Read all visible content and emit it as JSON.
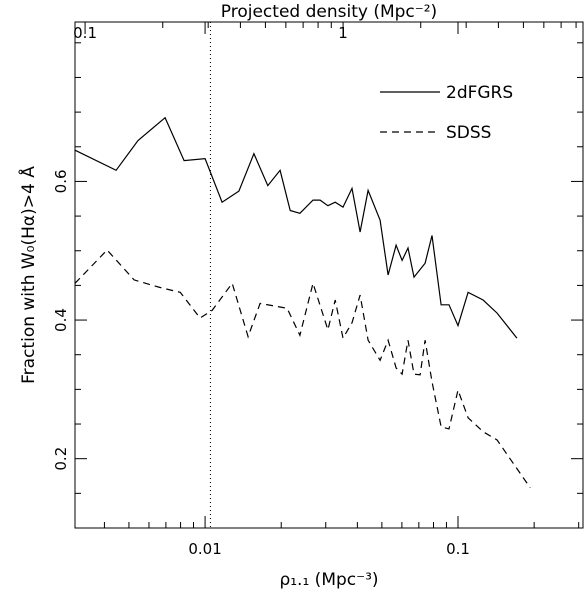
{
  "chart_data": {
    "type": "line",
    "x_label": "ρ₁.₁ (Mpc⁻³)",
    "y_label": "Fraction with W₀(Hα)>4 Å",
    "top_axis_label": "Projected density (Mpc⁻²)",
    "xscale": "log",
    "xlim": [
      0.00306,
      0.312
    ],
    "xticks": [
      0.01,
      0.1
    ],
    "xminorticks": [
      0.004,
      0.005,
      0.006,
      0.007,
      0.008,
      0.009,
      0.02,
      0.03,
      0.04,
      0.05,
      0.06,
      0.07,
      0.08,
      0.09,
      0.2,
      0.3
    ],
    "top_xlim": [
      0.0914,
      8.51
    ],
    "top_xticks": [
      0.1,
      1
    ],
    "top_xminorticks": [
      0.2,
      0.3,
      0.4,
      0.5,
      0.6,
      0.7,
      0.8,
      0.9,
      2,
      3,
      4,
      5,
      6,
      7,
      8
    ],
    "ylim": [
      0.1,
      0.83
    ],
    "yticks": [
      0.2,
      0.4,
      0.6
    ],
    "yminorticks": [
      0.15,
      0.25,
      0.3,
      0.35,
      0.45,
      0.5,
      0.55,
      0.65,
      0.7,
      0.75,
      0.8
    ],
    "vline": 0.0105,
    "legend": "upper right",
    "series": [
      {
        "name": "2dFGRS",
        "color": "#000000",
        "dash": "solid",
        "x": [
          0.00306,
          0.00445,
          0.00543,
          0.00695,
          0.00826,
          0.01,
          0.01168,
          0.0136,
          0.0156,
          0.0177,
          0.0198,
          0.0217,
          0.0237,
          0.0267,
          0.0285,
          0.0306,
          0.0327,
          0.0351,
          0.0381,
          0.041,
          0.0441,
          0.0492,
          0.0529,
          0.0569,
          0.0601,
          0.0634,
          0.067,
          0.0741,
          0.0789,
          0.0857,
          0.0921,
          0.1,
          0.1096,
          0.1257,
          0.1427,
          0.1709
        ],
        "values": [
          0.645,
          0.616,
          0.659,
          0.692,
          0.63,
          0.633,
          0.57,
          0.586,
          0.64,
          0.594,
          0.616,
          0.558,
          0.554,
          0.573,
          0.573,
          0.565,
          0.57,
          0.563,
          0.59,
          0.527,
          0.587,
          0.544,
          0.465,
          0.508,
          0.486,
          0.504,
          0.462,
          0.482,
          0.522,
          0.422,
          0.422,
          0.392,
          0.44,
          0.429,
          0.41,
          0.374
        ]
      },
      {
        "name": "SDSS",
        "color": "#000000",
        "dash": "dashed",
        "x": [
          0.00306,
          0.0041,
          0.00524,
          0.00664,
          0.00797,
          0.00955,
          0.01066,
          0.0128,
          0.0148,
          0.0165,
          0.0211,
          0.0237,
          0.0267,
          0.0306,
          0.0327,
          0.0351,
          0.0381,
          0.041,
          0.0441,
          0.0492,
          0.0529,
          0.0569,
          0.0601,
          0.0634,
          0.067,
          0.0708,
          0.0741,
          0.0789,
          0.0857,
          0.0921,
          0.1,
          0.1096,
          0.1257,
          0.1427,
          0.193
        ],
        "values": [
          0.453,
          0.501,
          0.458,
          0.447,
          0.44,
          0.403,
          0.414,
          0.453,
          0.376,
          0.424,
          0.417,
          0.378,
          0.453,
          0.386,
          0.429,
          0.374,
          0.396,
          0.436,
          0.371,
          0.342,
          0.371,
          0.331,
          0.322,
          0.371,
          0.322,
          0.321,
          0.371,
          0.311,
          0.246,
          0.243,
          0.299,
          0.259,
          0.239,
          0.227,
          0.158
        ]
      }
    ]
  }
}
